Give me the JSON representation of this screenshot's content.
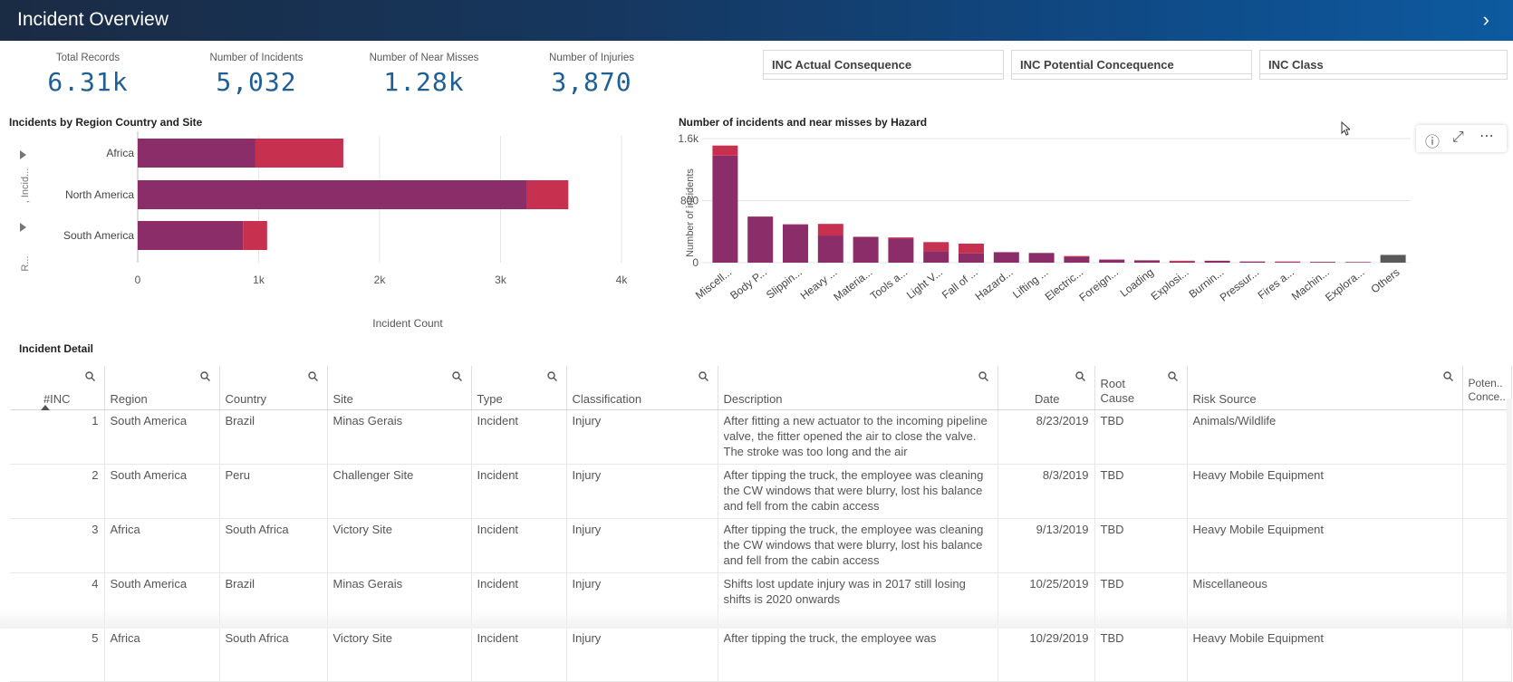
{
  "header": {
    "title": "Incident Overview"
  },
  "kpis": [
    {
      "label": "Total Records",
      "value": "6.31k"
    },
    {
      "label": "Number of Incidents",
      "value": "5,032"
    },
    {
      "label": "Number of Near Misses",
      "value": "1.28k"
    },
    {
      "label": "Number of Injuries",
      "value": "3,870"
    }
  ],
  "filters": [
    "INC Actual Consequence",
    "INC Potential Concequence",
    "INC Class"
  ],
  "colors": {
    "incident": "#8a2d68",
    "near_miss": "#c8304f",
    "others": "#595959",
    "kpi": "#1f5f96"
  },
  "charts": {
    "region": {
      "title": "Incidents by Region Country and Site",
      "side_labels": [
        ", Incid...",
        "R..."
      ]
    },
    "hazard": {
      "title": "Number of incidents and near misses by Hazard"
    }
  },
  "chart_data": [
    {
      "type": "bar",
      "orientation": "horizontal",
      "stacked": true,
      "title": "Incidents by Region Country and Site",
      "categories": [
        "Africa",
        "North America",
        "South America"
      ],
      "series": [
        {
          "values": [
            970,
            3220,
            870
          ]
        },
        {
          "values": [
            730,
            340,
            200
          ]
        }
      ],
      "xlabel": "Incident Count",
      "xlim": [
        0,
        4000
      ],
      "xticks": [
        "0",
        "1k",
        "2k",
        "3k",
        "4k"
      ],
      "grid": true
    },
    {
      "type": "bar",
      "stacked": true,
      "title": "Number of incidents and near misses by Hazard",
      "categories": [
        "Miscell...",
        "Body P...",
        "Slippin...",
        "Heavy ...",
        "Materia...",
        "Tools a...",
        "Light V...",
        "Fall of ...",
        "Hazard...",
        "Lifting ...",
        "Electric...",
        "Foreign...",
        "Loading",
        "Explosi...",
        "Burnin...",
        "Pressur...",
        "Fires a...",
        "Machin...",
        "Explora...",
        "Others"
      ],
      "series": [
        {
          "values": [
            1380,
            590,
            490,
            350,
            330,
            310,
            150,
            120,
            135,
            125,
            70,
            40,
            30,
            15,
            25,
            15,
            10,
            10,
            8,
            100
          ]
        },
        {
          "values": [
            130,
            5,
            5,
            150,
            5,
            15,
            115,
            125,
            0,
            0,
            15,
            0,
            0,
            10,
            0,
            0,
            5,
            0,
            0,
            0
          ]
        }
      ],
      "ylabel": "Number of incidents",
      "ylim": [
        0,
        1600
      ],
      "yticks": [
        "0",
        "800",
        "1.6k"
      ],
      "grid": true
    }
  ],
  "detail": {
    "title": "Incident Detail",
    "columns": [
      "#INC",
      "Region",
      "Country",
      "Site",
      "Type",
      "Classification",
      "Description",
      "Date",
      "Root Cause",
      "Risk Source",
      "Poten.. Conce.."
    ],
    "rows": [
      [
        "1",
        "South America",
        "Brazil",
        "Minas Gerais",
        "Incident",
        "Injury",
        "After fitting a new actuator to the incoming pipeline valve, the fitter opened the air to close the valve. The stroke was too long and the air",
        "8/23/2019",
        "TBD",
        "Animals/Wildlife",
        ""
      ],
      [
        "2",
        "South America",
        "Peru",
        "Challenger Site",
        "Incident",
        "Injury",
        "After tipping the truck, the employee was cleaning the CW windows that were blurry, lost his balance and fell from the cabin access",
        "8/3/2019",
        "TBD",
        "Heavy Mobile Equipment",
        ""
      ],
      [
        "3",
        "Africa",
        "South Africa",
        "Victory Site",
        "Incident",
        "Injury",
        "After tipping the truck, the employee was cleaning the CW windows that were blurry, lost his balance and fell from the cabin access",
        "9/13/2019",
        "TBD",
        "Heavy Mobile Equipment",
        ""
      ],
      [
        "4",
        "South America",
        "Brazil",
        "Minas Gerais",
        "Incident",
        "Injury",
        "Shifts lost update injury was in 2017 still losing shifts is 2020 onwards",
        "10/25/2019",
        "TBD",
        "Miscellaneous",
        ""
      ],
      [
        "5",
        "Africa",
        "South Africa",
        "Victory Site",
        "Incident",
        "Injury",
        "After tipping the truck, the employee was",
        "10/29/2019",
        "TBD",
        "Heavy Mobile Equipment",
        ""
      ]
    ]
  }
}
